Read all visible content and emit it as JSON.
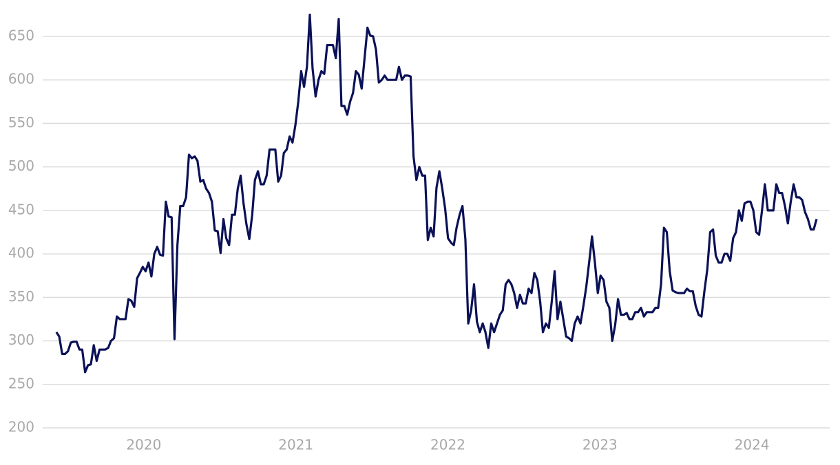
{
  "chart_data": {
    "type": "line",
    "x": [
      2019.425,
      2019.444,
      2019.463,
      2019.482,
      2019.501,
      2019.52,
      2019.539,
      2019.558,
      2019.577,
      2019.595,
      2019.614,
      2019.633,
      2019.652,
      2019.671,
      2019.69,
      2019.709,
      2019.728,
      2019.747,
      2019.766,
      2019.784,
      2019.804,
      2019.823,
      2019.842,
      2019.861,
      2019.88,
      2019.899,
      2019.918,
      2019.937,
      2019.956,
      2019.974,
      2019.993,
      2020.012,
      2020.031,
      2020.05,
      2020.069,
      2020.088,
      2020.107,
      2020.126,
      2020.145,
      2020.163,
      2020.183,
      2020.202,
      2020.221,
      2020.24,
      2020.259,
      2020.278,
      2020.297,
      2020.316,
      2020.335,
      2020.353,
      2020.372,
      2020.391,
      2020.41,
      2020.429,
      2020.448,
      2020.467,
      2020.486,
      2020.505,
      2020.524,
      2020.542,
      2020.561,
      2020.58,
      2020.599,
      2020.618,
      2020.637,
      2020.656,
      2020.675,
      2020.694,
      2020.713,
      2020.731,
      2020.751,
      2020.77,
      2020.789,
      2020.808,
      2020.827,
      2020.846,
      2020.865,
      2020.884,
      2020.903,
      2020.921,
      2020.94,
      2020.959,
      2020.978,
      2020.997,
      2021.016,
      2021.035,
      2021.054,
      2021.073,
      2021.092,
      2021.11,
      2021.13,
      2021.149,
      2021.168,
      2021.187,
      2021.206,
      2021.225,
      2021.244,
      2021.263,
      2021.282,
      2021.3,
      2021.319,
      2021.338,
      2021.357,
      2021.376,
      2021.395,
      2021.414,
      2021.433,
      2021.452,
      2021.471,
      2021.489,
      2021.508,
      2021.527,
      2021.546,
      2021.565,
      2021.584,
      2021.603,
      2021.622,
      2021.641,
      2021.66,
      2021.678,
      2021.698,
      2021.717,
      2021.736,
      2021.755,
      2021.774,
      2021.793,
      2021.812,
      2021.831,
      2021.85,
      2021.868,
      2021.887,
      2021.906,
      2021.925,
      2021.944,
      2021.963,
      2021.982,
      2022.001,
      2022.02,
      2022.039,
      2022.057,
      2022.077,
      2022.096,
      2022.115,
      2022.134,
      2022.153,
      2022.172,
      2022.191,
      2022.21,
      2022.229,
      2022.247,
      2022.266,
      2022.285,
      2022.304,
      2022.323,
      2022.342,
      2022.361,
      2022.38,
      2022.399,
      2022.418,
      2022.436,
      2022.455,
      2022.474,
      2022.493,
      2022.512,
      2022.531,
      2022.55,
      2022.569,
      2022.588,
      2022.607,
      2022.625,
      2022.645,
      2022.664,
      2022.683,
      2022.702,
      2022.721,
      2022.74,
      2022.759,
      2022.778,
      2022.797,
      2022.815,
      2022.834,
      2022.853,
      2022.872,
      2022.891,
      2022.91,
      2022.929,
      2022.948,
      2022.967,
      2022.986,
      2023.004,
      2023.024,
      2023.043,
      2023.062,
      2023.081,
      2023.1,
      2023.119,
      2023.138,
      2023.157,
      2023.176,
      2023.194,
      2023.213,
      2023.232,
      2023.251,
      2023.27,
      2023.289,
      2023.308,
      2023.327,
      2023.346,
      2023.365,
      2023.383,
      2023.402,
      2023.421,
      2023.44,
      2023.459,
      2023.478,
      2023.497,
      2023.516,
      2023.535,
      2023.554,
      2023.572,
      2023.592,
      2023.611,
      2023.63,
      2023.649,
      2023.668,
      2023.687,
      2023.706,
      2023.725,
      2023.744,
      2023.762,
      2023.781,
      2023.8,
      2023.819,
      2023.838,
      2023.857,
      2023.876,
      2023.895,
      2023.914,
      2023.933,
      2023.951,
      2023.971,
      2023.99,
      2024.009,
      2024.028,
      2024.047,
      2024.066,
      2024.085,
      2024.104,
      2024.123,
      2024.141,
      2024.16,
      2024.179,
      2024.198,
      2024.217,
      2024.236,
      2024.255,
      2024.274,
      2024.293,
      2024.312,
      2024.33,
      2024.349,
      2024.368,
      2024.387,
      2024.406,
      2024.425
    ],
    "values": [
      310,
      305,
      285,
      285,
      288,
      298,
      299,
      299,
      290,
      290,
      264,
      272,
      273,
      295,
      277,
      290,
      290,
      290,
      292,
      300,
      303,
      328,
      325,
      325,
      325,
      348,
      346,
      339,
      372,
      378,
      385,
      380,
      390,
      374,
      400,
      408,
      399,
      398,
      460,
      443,
      442,
      302,
      410,
      455,
      455,
      465,
      514,
      510,
      512,
      507,
      483,
      485,
      475,
      470,
      460,
      427,
      426,
      401,
      440,
      418,
      410,
      445,
      445,
      475,
      490,
      458,
      434,
      417,
      445,
      485,
      495,
      480,
      480,
      490,
      520,
      520,
      520,
      483,
      490,
      516,
      520,
      535,
      528,
      548,
      575,
      610,
      592,
      615,
      675,
      613,
      581,
      600,
      610,
      607,
      640,
      640,
      640,
      625,
      670,
      570,
      570,
      560,
      575,
      585,
      610,
      606,
      590,
      625,
      660,
      651,
      650,
      635,
      597,
      600,
      605,
      600,
      600,
      600,
      600,
      615,
      600,
      605,
      605,
      604,
      512,
      485,
      500,
      490,
      490,
      416,
      430,
      420,
      476,
      495,
      475,
      452,
      418,
      413,
      410,
      430,
      445,
      455,
      417,
      320,
      335,
      365,
      322,
      310,
      320,
      310,
      292,
      320,
      310,
      320,
      330,
      335,
      365,
      370,
      365,
      355,
      338,
      353,
      343,
      343,
      360,
      355,
      378,
      370,
      345,
      310,
      320,
      315,
      345,
      380,
      325,
      345,
      325,
      305,
      303,
      300,
      320,
      328,
      320,
      340,
      362,
      390,
      420,
      390,
      355,
      375,
      370,
      345,
      338,
      300,
      318,
      348,
      330,
      330,
      332,
      325,
      325,
      333,
      333,
      338,
      328,
      333,
      333,
      333,
      338,
      338,
      365,
      430,
      425,
      380,
      358,
      356,
      355,
      355,
      355,
      360,
      357,
      357,
      340,
      330,
      328,
      357,
      382,
      425,
      428,
      398,
      390,
      390,
      400,
      400,
      392,
      418,
      425,
      450,
      438,
      458,
      460,
      460,
      450,
      425,
      422,
      450,
      480,
      450,
      450,
      450,
      480,
      470,
      470,
      455,
      435,
      460,
      480,
      465,
      465,
      462,
      448,
      440,
      428,
      428,
      440
    ],
    "color": "#0b1157",
    "xlim": [
      2019.335,
      2024.511
    ],
    "xticks": [
      2020,
      2021,
      2022,
      2023,
      2024
    ],
    "ylim": [
      200,
      680
    ],
    "yticks": [
      200,
      250,
      300,
      350,
      400,
      450,
      500,
      550,
      600,
      650
    ],
    "grid": true
  }
}
